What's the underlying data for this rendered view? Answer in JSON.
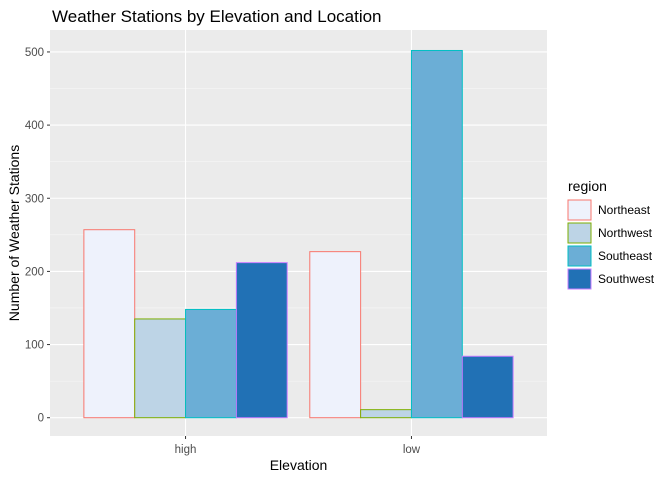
{
  "chart_data": {
    "type": "bar",
    "title": "Weather Stations by Elevation and Location",
    "xlabel": "Elevation",
    "ylabel": "Number of Weather Stations",
    "categories": [
      "high",
      "low"
    ],
    "ylim": [
      -25,
      530
    ],
    "yticks": [
      0,
      100,
      200,
      300,
      400,
      500
    ],
    "grid": true,
    "legend": {
      "title": "region",
      "position": "right"
    },
    "series": [
      {
        "name": "Northeast",
        "values": [
          257,
          227
        ],
        "fill": "#eef2fc",
        "stroke": "#f8766d"
      },
      {
        "name": "Northwest",
        "values": [
          135,
          11
        ],
        "fill": "#bdd4e6",
        "stroke": "#7cae00"
      },
      {
        "name": "Southeast",
        "values": [
          148,
          502
        ],
        "fill": "#6baed6",
        "stroke": "#00bfc4"
      },
      {
        "name": "Southwest",
        "values": [
          212,
          84
        ],
        "fill": "#2171b5",
        "stroke": "#c77cff"
      }
    ],
    "colors": {
      "panel_background": "#ebebeb",
      "grid_major": "#ffffff",
      "tick_text": "#4d4d4d",
      "tick_mark": "#333333"
    }
  }
}
